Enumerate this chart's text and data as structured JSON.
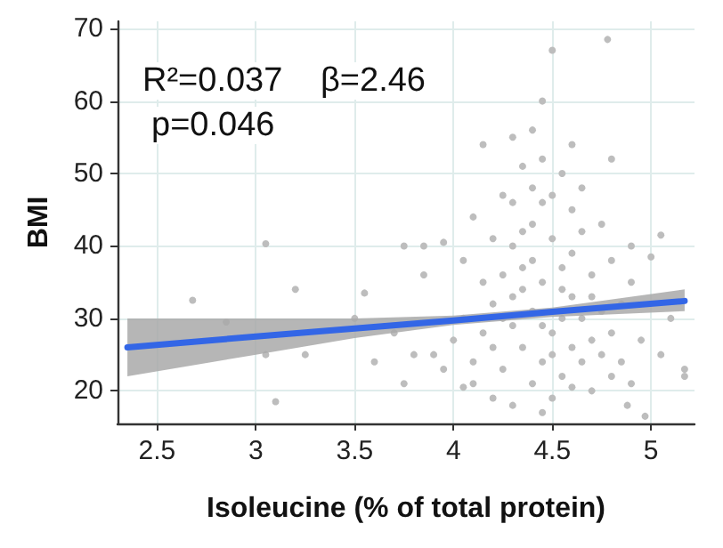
{
  "chart_data": {
    "type": "scatter",
    "xlabel": "Isoleucine (% of total protein)",
    "ylabel": "BMI",
    "annotations": [
      "R²=0.037",
      "β=2.46",
      "p=0.046"
    ],
    "xlim": [
      2.3,
      5.22
    ],
    "ylim": [
      15.5,
      71
    ],
    "xticks": [
      2.5,
      3,
      3.5,
      4,
      4.5,
      5
    ],
    "yticks": [
      20,
      30,
      40,
      50,
      60,
      70
    ],
    "grid": true,
    "marker": "circle",
    "series": [
      {
        "type": "scatter",
        "color": "#bdbdbd",
        "x": [
          3.05,
          2.68,
          3.2,
          3.1,
          2.85,
          3.05,
          3.25,
          3.55,
          3.5,
          3.75,
          3.85,
          3.75,
          3.95,
          3.9,
          3.85,
          4.05,
          4.05,
          3.95,
          4.1,
          4.15,
          4.3,
          4.4,
          4.45,
          4.5,
          4.78,
          4.8,
          4.6,
          4.65,
          4.55,
          4.35,
          4.4,
          4.45,
          4.6,
          4.75,
          4.9,
          5.05,
          5,
          5.17,
          5.17,
          4.97,
          4.88,
          5.05,
          4.95,
          5.1,
          4.8,
          4.7,
          4.5,
          4.45,
          4.3,
          4.2,
          4.1,
          4.15,
          4.2,
          4.25,
          4.3,
          4.35,
          4.4,
          4.45,
          4.5,
          4.55,
          4.6,
          4.65,
          4.7,
          4.75,
          4.8,
          4.85,
          4.9,
          4.7,
          4.6,
          4.5,
          4.45,
          4.4,
          4.35,
          4.3,
          4.25,
          4.2,
          4.3,
          4.4,
          4.5,
          4.55,
          4.6,
          4.65,
          4.55,
          4.45,
          4.35,
          4.25,
          4.15,
          4.05,
          4.0,
          4.1,
          4.35,
          4.4,
          4.5,
          4.3,
          4.2,
          4.55,
          4.65,
          4.75,
          4.85,
          4.9,
          4.6,
          4.7,
          4.8,
          4.45,
          4.25,
          3.8,
          3.7,
          3.6
        ],
        "values": [
          40.3,
          32.5,
          34,
          18.5,
          29.5,
          25,
          25,
          33.5,
          30,
          21,
          40,
          40,
          40.5,
          25,
          36,
          38,
          20.5,
          23,
          44,
          54,
          55,
          56,
          60,
          67,
          68.5,
          52,
          54,
          48,
          50,
          51,
          48,
          46,
          45,
          43,
          40,
          41.5,
          38.5,
          23,
          22,
          16.5,
          18,
          25,
          27,
          30,
          22,
          20,
          19,
          17,
          18,
          19,
          24,
          28,
          32,
          36,
          40,
          42,
          38,
          35,
          41,
          37,
          33,
          30,
          27,
          25,
          28,
          32,
          35,
          36,
          39,
          28,
          24,
          21,
          26,
          29,
          23,
          26,
          33,
          31,
          25,
          22,
          20.5,
          24,
          30,
          29,
          34,
          30,
          35,
          30,
          27,
          21,
          37,
          43,
          47,
          46,
          41,
          34,
          42,
          31,
          24,
          21,
          26,
          33,
          38,
          52,
          47,
          25,
          28,
          24
        ]
      },
      {
        "type": "line",
        "color": "#3366e6",
        "marker": "none",
        "line_style": "solid",
        "x": [
          2.35,
          3,
          3.5,
          4,
          4.5,
          5.17
        ],
        "values": [
          26.0,
          27.5,
          28.6,
          29.7,
          30.9,
          32.4
        ],
        "lower": [
          22,
          25,
          27.3,
          29.1,
          30.2,
          31
        ],
        "upper": [
          30,
          30,
          30,
          30.4,
          31.5,
          34
        ]
      }
    ]
  }
}
